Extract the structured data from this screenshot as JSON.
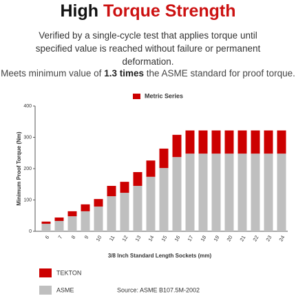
{
  "header": {
    "title_plain": "High",
    "title_highlight": "Torque Strength",
    "description": "Verified by a single-cycle test that applies torque until specified value is reached without failure or permanent deformation.",
    "tagline_start": "Meets minimum value of",
    "tagline_bold": "1.3 times",
    "tagline_end": "the ASME standard for proof torque."
  },
  "chart_data": {
    "type": "stacked_bar",
    "title": "Metric Series",
    "x_label": "3/8 Inch Standard Length Sockets (mm)",
    "y_label": "Minimum Proof Torque (Nm)",
    "categories": [
      "6",
      "7",
      "8",
      "9",
      "10",
      "11",
      "12",
      "13",
      "14",
      "15",
      "16",
      "17",
      "18",
      "19",
      "20",
      "21",
      "22",
      "23",
      "24"
    ],
    "series": [
      {
        "name": "ASME",
        "color": "#bfbfbf",
        "values": [
          24,
          33,
          48,
          64,
          79,
          112,
          123,
          145,
          174,
          202,
          237,
          248,
          248,
          248,
          248,
          248,
          248,
          248,
          248
        ]
      },
      {
        "name": "TEKTON",
        "color": "#cc0000",
        "values": [
          7,
          11,
          16,
          22,
          24,
          33,
          35,
          44,
          52,
          62,
          71,
          74,
          74,
          74,
          74,
          74,
          74,
          74,
          74
        ]
      }
    ],
    "ylim": [
      0,
      400
    ],
    "yticks": [
      0,
      100,
      200,
      300,
      400
    ],
    "source": "Source: ASME B107.5M-2002"
  }
}
